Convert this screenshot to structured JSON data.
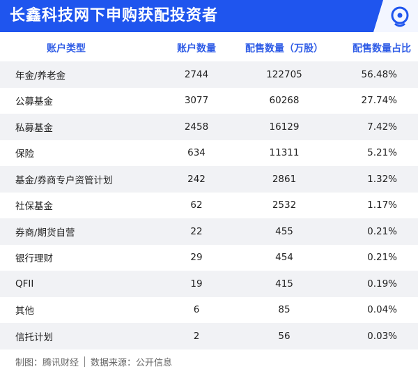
{
  "header": {
    "title": "长鑫科技网下申购获配投资者"
  },
  "table": {
    "columns": [
      "账户类型",
      "账户数量",
      "配售数量（万股）",
      "配售数量占比"
    ],
    "rows": [
      [
        "年金/养老金",
        "2744",
        "122705",
        "56.48%"
      ],
      [
        "公募基金",
        "3077",
        "60268",
        "27.74%"
      ],
      [
        "私募基金",
        "2458",
        "16129",
        "7.42%"
      ],
      [
        "保险",
        "634",
        "11311",
        "5.21%"
      ],
      [
        "基金/券商专户资管计划",
        "242",
        "2861",
        "1.32%"
      ],
      [
        "社保基金",
        "62",
        "2532",
        "1.17%"
      ],
      [
        "券商/期货自营",
        "22",
        "455",
        "0.21%"
      ],
      [
        "银行理财",
        "29",
        "454",
        "0.21%"
      ],
      [
        "QFII",
        "19",
        "415",
        "0.19%"
      ],
      [
        "其他",
        "6",
        "85",
        "0.04%"
      ],
      [
        "信托计划",
        "2",
        "56",
        "0.03%"
      ]
    ]
  },
  "footer": {
    "maker": "制图：腾讯财经",
    "source": "数据来源：公开信息"
  }
}
